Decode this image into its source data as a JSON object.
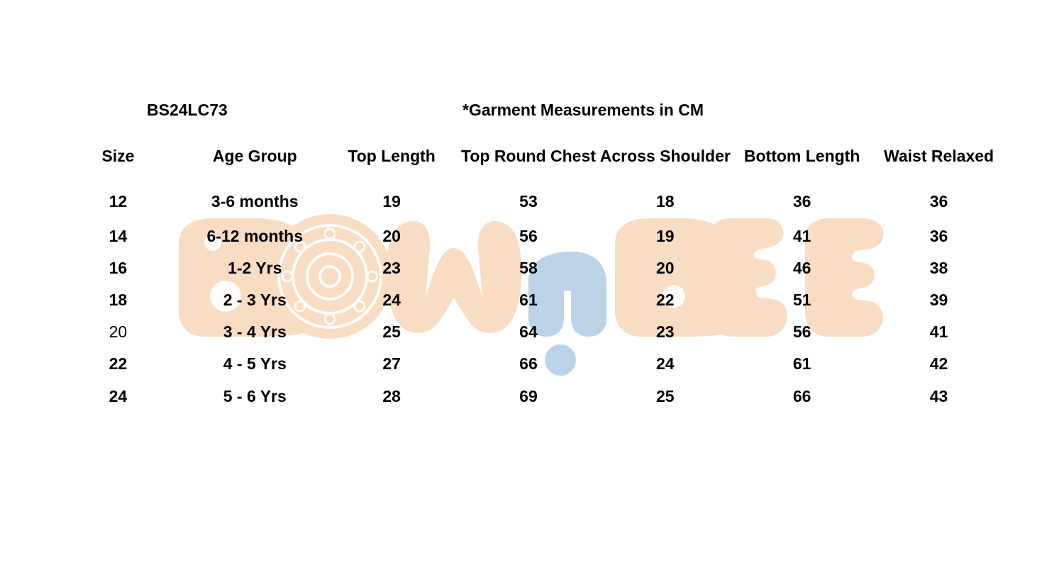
{
  "document": {
    "style_code": "BS24LC73",
    "note": "*Garment Measurements in CM"
  },
  "table": {
    "headers": [
      "Size",
      "Age Group",
      "Top Length",
      "Top Round Chest",
      "Across Shoulder",
      "Bottom Length",
      "Waist Relaxed"
    ],
    "rows": [
      [
        "12",
        "3-6 months",
        "19",
        "53",
        "18",
        "36",
        "36"
      ],
      [
        "14",
        "6-12 months",
        "20",
        "56",
        "19",
        "41",
        "36"
      ],
      [
        "16",
        "1-2 Yrs",
        "23",
        "58",
        "20",
        "46",
        "38"
      ],
      [
        "18",
        "2 - 3 Yrs",
        "24",
        "61",
        "22",
        "51",
        "39"
      ],
      [
        "20",
        "3 - 4 Yrs",
        "25",
        "64",
        "23",
        "56",
        "41"
      ],
      [
        "22",
        "4 - 5 Yrs",
        "27",
        "66",
        "24",
        "61",
        "42"
      ],
      [
        "24",
        "5 - 6 Yrs",
        "28",
        "69",
        "25",
        "66",
        "43"
      ]
    ]
  },
  "watermark": {
    "logo": "BOWnBEE",
    "colors": {
      "peach": "#f9dcc4",
      "blue": "#bcd2e6"
    }
  }
}
